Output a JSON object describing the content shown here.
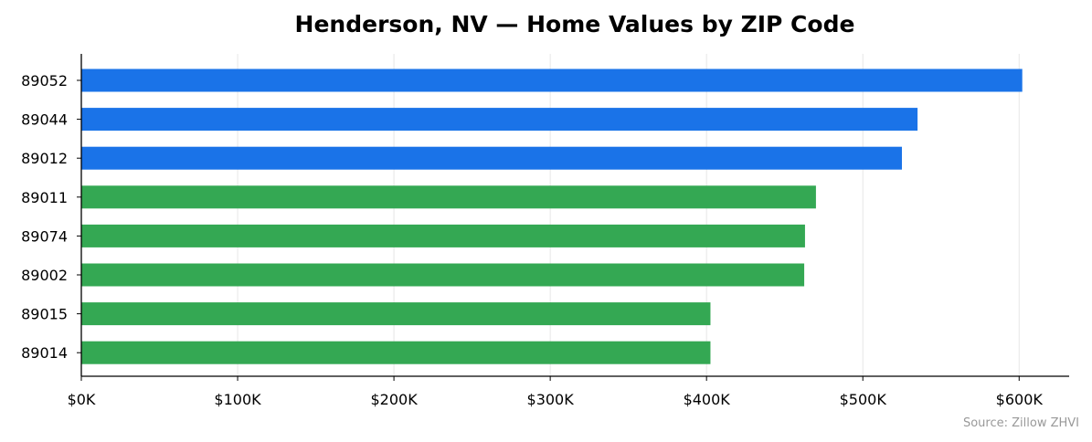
{
  "chart_data": {
    "type": "bar",
    "orientation": "horizontal",
    "title": "Henderson, NV — Home Values by ZIP Code",
    "xlabel": "",
    "ylabel": "",
    "source": "Source: Zillow ZHVI",
    "categories": [
      "89052",
      "89044",
      "89012",
      "89011",
      "89074",
      "89002",
      "89015",
      "89014"
    ],
    "values": [
      602000,
      535000,
      525000,
      470000,
      463000,
      462500,
      402500,
      402500
    ],
    "bar_colors": [
      "#1a73e8",
      "#1a73e8",
      "#1a73e8",
      "#34a853",
      "#34a853",
      "#34a853",
      "#34a853",
      "#34a853"
    ],
    "xlim": [
      0,
      632000
    ],
    "xticks": [
      0,
      100000,
      200000,
      300000,
      400000,
      500000,
      600000
    ],
    "xtick_labels": [
      "$0K",
      "$100K",
      "$200K",
      "$300K",
      "$400K",
      "$500K",
      "$600K"
    ],
    "grid": "x",
    "legend": "none"
  }
}
